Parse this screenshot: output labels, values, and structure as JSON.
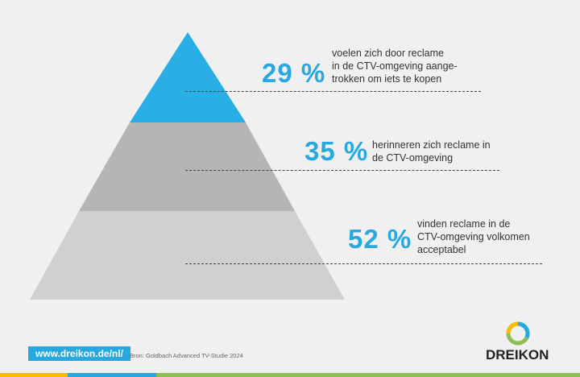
{
  "levels": [
    {
      "percent": "29 %",
      "text": "voelen zich door reclame in de CTV-omgeving aange-trokken om iets te kopen",
      "line1": "voelen zich door reclame",
      "line2": "in de CTV-omgeving aange-",
      "line3": "trokken om iets te kopen",
      "color": "#2aaee6"
    },
    {
      "percent": "35 %",
      "line1": "herinneren zich reclame in",
      "line2": "de CTV-omgeving",
      "color": "#b5b5b5"
    },
    {
      "percent": "52 %",
      "line1": "vinden reclame in de",
      "line2": "CTV-omgeving volkomen",
      "line3": "acceptabel",
      "color": "#d0d0d0"
    }
  ],
  "footer": {
    "url": "www.dreikon.de/nl/",
    "source": "Bron: Goldbach Advanced TV-Studie 2024",
    "brand": "DREIKON"
  },
  "colors": {
    "accent": "#27a8e0",
    "yellow": "#fbb900",
    "green": "#8cbf54",
    "background": "#f0f0f0"
  }
}
